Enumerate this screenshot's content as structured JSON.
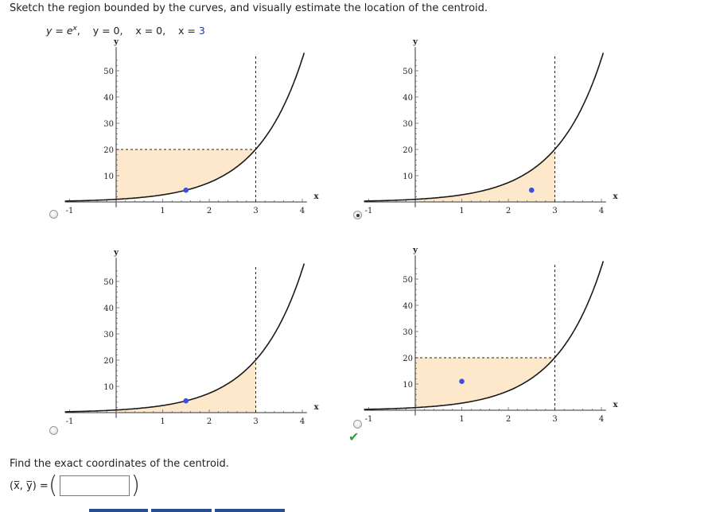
{
  "question": {
    "prompt": "Sketch the region bounded by the curves, and visually estimate the location of the centroid.",
    "eq_y": "y",
    "eq_eq1": " = ",
    "eq_ex": "e",
    "eq_ex_sup": "x",
    "eq_rest1": ",    y = 0,    x = 0,    x = ",
    "eq_three": "3"
  },
  "colors": {
    "region_fill": "#fde8cc",
    "curve": "#1a1a1a",
    "dot": "#3b4fe0",
    "check": "#2aa43a"
  },
  "axis_labels": {
    "x": "x",
    "y": "y"
  },
  "x_ticks": [
    "-1",
    "1",
    "2",
    "3",
    "4"
  ],
  "y_ticks": [
    "10",
    "20",
    "30",
    "40",
    "50"
  ],
  "choices": [
    {
      "id": "a",
      "region": "above-curve-below-y=20",
      "centroid": [
        1.5,
        4.5
      ],
      "selected": false,
      "correct": false
    },
    {
      "id": "b",
      "region": "under-curve",
      "centroid": [
        2.5,
        4.5
      ],
      "selected": true,
      "correct": false
    },
    {
      "id": "c",
      "region": "under-curve",
      "centroid": [
        1.5,
        4.5
      ],
      "selected": false,
      "correct": false
    },
    {
      "id": "d",
      "region": "above-curve-below-y=20",
      "centroid": [
        1.0,
        11.0
      ],
      "selected": false,
      "correct": true
    }
  ],
  "answer": {
    "prompt": "Find the exact coordinates of the centroid.",
    "label": "(x̅, y̅) = ",
    "value": "",
    "open_paren": "(",
    "close_paren": ")"
  }
}
